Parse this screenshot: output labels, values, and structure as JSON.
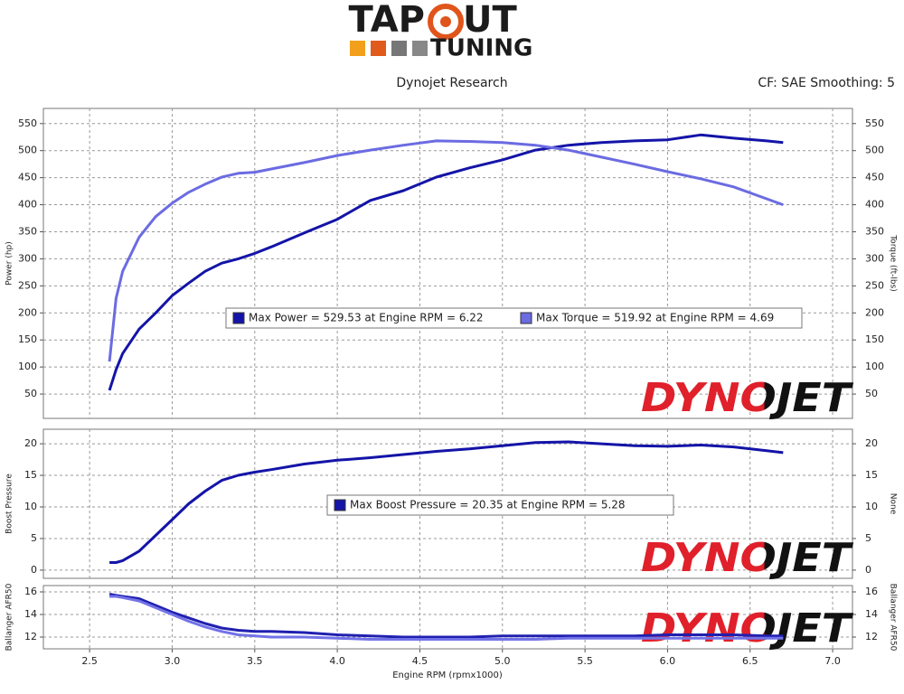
{
  "header": {
    "logo_left": "TAP",
    "logo_right": "UT",
    "logo_bottom": "TUNING",
    "title": "Dynojet Research",
    "settings": "CF: SAE Smoothing: 5"
  },
  "chart_data": [
    {
      "type": "line",
      "ylabel": "Power (hp)",
      "y2label": "Torque (ft-lbs)",
      "watermark": "DYNOJET",
      "ylim": [
        5,
        578
      ],
      "yticks": [
        50,
        100,
        150,
        200,
        250,
        300,
        350,
        400,
        450,
        500,
        550
      ],
      "y2lim": [
        5,
        578
      ],
      "y2ticks": [
        50,
        100,
        150,
        200,
        250,
        300,
        350,
        400,
        450,
        500,
        550
      ],
      "grid": true,
      "x": [
        2.62,
        2.66,
        2.7,
        2.8,
        2.9,
        3.0,
        3.1,
        3.2,
        3.3,
        3.4,
        3.5,
        3.6,
        3.8,
        4.0,
        4.2,
        4.4,
        4.6,
        4.8,
        5.0,
        5.2,
        5.4,
        5.6,
        5.8,
        6.0,
        6.2,
        6.4,
        6.6,
        6.7
      ],
      "series": [
        {
          "name": "Max Power = 529.53 at Engine RPM = 6.22",
          "color": "#1414a8",
          "values": [
            57,
            95,
            125,
            170,
            200,
            232,
            255,
            277,
            292,
            300,
            310,
            322,
            348,
            373,
            408,
            426,
            451,
            468,
            483,
            501,
            510,
            515,
            518,
            520,
            529,
            523,
            518,
            515
          ]
        },
        {
          "name": "Max Torque = 519.92 at Engine RPM = 4.69",
          "color": "#6b6be2",
          "axis": "y2",
          "values": [
            110,
            227,
            277,
            340,
            378,
            403,
            423,
            438,
            451,
            458,
            460,
            466,
            478,
            491,
            501,
            510,
            518,
            517,
            515,
            510,
            501,
            488,
            475,
            461,
            448,
            433,
            411,
            400
          ]
        }
      ]
    },
    {
      "type": "line",
      "ylabel": "Boost Pressure",
      "y2label": "None",
      "watermark": "DYNOJET",
      "ylim": [
        -1.3,
        22.3
      ],
      "yticks": [
        0,
        5,
        10,
        15,
        20
      ],
      "y2lim": [
        -1.3,
        22.3
      ],
      "y2ticks": [
        0,
        5,
        10,
        15,
        20
      ],
      "grid": true,
      "x": [
        2.62,
        2.66,
        2.7,
        2.8,
        2.9,
        3.0,
        3.1,
        3.2,
        3.3,
        3.4,
        3.5,
        3.6,
        3.8,
        4.0,
        4.2,
        4.4,
        4.6,
        4.8,
        5.0,
        5.2,
        5.4,
        5.6,
        5.8,
        6.0,
        6.2,
        6.4,
        6.6,
        6.7
      ],
      "series": [
        {
          "name": "Max Boost Pressure = 20.35 at Engine RPM = 5.28",
          "color": "#1414a8",
          "values": [
            1.2,
            1.2,
            1.5,
            3,
            5.5,
            8,
            10.5,
            12.5,
            14.2,
            15,
            15.5,
            15.9,
            16.8,
            17.4,
            17.8,
            18.3,
            18.8,
            19.2,
            19.7,
            20.2,
            20.3,
            20.0,
            19.7,
            19.6,
            19.8,
            19.5,
            18.9,
            18.6
          ]
        }
      ]
    },
    {
      "type": "line",
      "ylabel": "Ballanger AFR50",
      "y2label": "Ballanger AFR50",
      "watermark": "DYNOJET",
      "xlabel": "Engine RPM (rpmx1000)",
      "xlim": [
        2.22,
        7.12
      ],
      "xticks": [
        2.5,
        {
          "value": 3,
          "label": "3.0"
        },
        3.5,
        {
          "value": 4,
          "label": "4.0"
        },
        4.5,
        {
          "value": 5,
          "label": "5.0"
        },
        5.5,
        {
          "value": 6,
          "label": "6.0"
        },
        6.5,
        {
          "value": 7,
          "label": "7.0"
        }
      ],
      "ylim": [
        10.96,
        16.56
      ],
      "yticks": [
        12,
        14,
        16
      ],
      "y2lim": [
        10.96,
        16.56
      ],
      "y2ticks": [
        12,
        14,
        16
      ],
      "grid": true,
      "x": [
        2.62,
        2.66,
        2.7,
        2.8,
        2.9,
        3.0,
        3.1,
        3.2,
        3.3,
        3.4,
        3.5,
        3.6,
        3.8,
        4.0,
        4.2,
        4.4,
        4.6,
        4.8,
        5.0,
        5.2,
        5.4,
        5.6,
        5.8,
        6.0,
        6.2,
        6.4,
        6.6,
        6.7
      ],
      "series": [
        {
          "color": "#2020b0",
          "values": [
            15.8,
            15.7,
            15.6,
            15.4,
            14.8,
            14.2,
            13.7,
            13.2,
            12.8,
            12.6,
            12.5,
            12.5,
            12.4,
            12.2,
            12.1,
            12.0,
            12.0,
            12.0,
            12.1,
            12.1,
            12.1,
            12.1,
            12.1,
            12.2,
            12.2,
            12.2,
            12.1,
            12.1
          ]
        },
        {
          "color": "#7272e8",
          "values": [
            15.6,
            15.6,
            15.5,
            15.2,
            14.6,
            14.0,
            13.4,
            12.9,
            12.5,
            12.2,
            12.1,
            12.0,
            12.0,
            11.9,
            11.8,
            11.8,
            11.8,
            11.8,
            11.8,
            11.8,
            11.9,
            11.9,
            11.9,
            11.9,
            11.9,
            11.9,
            11.9,
            11.9
          ]
        }
      ]
    }
  ]
}
